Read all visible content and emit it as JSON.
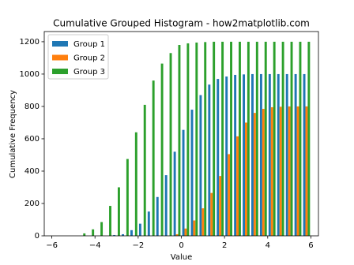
{
  "chart_data": {
    "type": "histogram",
    "title": "Cumulative Grouped Histogram - how2matplotlib.com",
    "x_label": "Value",
    "y_label": "Cumulative Frequency",
    "bins": [
      -6,
      -5.6,
      -5.2,
      -4.8,
      -4.4,
      -4,
      -3.6,
      -3.2,
      -2.8,
      -2.4,
      -2,
      -1.6,
      -1.2,
      -0.8,
      -0.4,
      0,
      0.4,
      0.8,
      1.2,
      1.6,
      2,
      2.4,
      2.8,
      3.2,
      3.6,
      4,
      4.4,
      4.8,
      5.2,
      5.6,
      6
    ],
    "series": [
      {
        "name": "Group 1",
        "color": "#1f77b4",
        "values": [
          0,
          0,
          0,
          0,
          0,
          0,
          0,
          5,
          10,
          35,
          75,
          150,
          240,
          375,
          520,
          655,
          780,
          870,
          935,
          970,
          985,
          995,
          998,
          1000,
          1000,
          1000,
          1000,
          1000,
          1000,
          1000
        ]
      },
      {
        "name": "Group 2",
        "color": "#ff7f0e",
        "values": [
          0,
          0,
          0,
          0,
          0,
          0,
          0,
          0,
          0,
          0,
          0,
          0,
          0,
          0,
          10,
          45,
          95,
          170,
          265,
          370,
          505,
          615,
          700,
          760,
          785,
          795,
          798,
          800,
          800,
          800
        ]
      },
      {
        "name": "Group 3",
        "color": "#2ca02c",
        "values": [
          0,
          0,
          0,
          15,
          40,
          85,
          185,
          300,
          475,
          640,
          810,
          960,
          1065,
          1130,
          1180,
          1190,
          1195,
          1198,
          1200,
          1200,
          1200,
          1200,
          1200,
          1200,
          1200,
          1200,
          1200,
          1200,
          1200,
          1200
        ]
      }
    ],
    "xlim": [
      -6.35,
      6.35
    ],
    "ylim": [
      0,
      1263
    ],
    "xticks": [
      {
        "value": -6,
        "label": "−6"
      },
      {
        "value": -4,
        "label": "−4"
      },
      {
        "value": -2,
        "label": "−2"
      },
      0,
      2,
      4,
      6
    ],
    "yticks": [
      0,
      200,
      400,
      600,
      800,
      1000,
      1200
    ],
    "legend": "upper left"
  }
}
